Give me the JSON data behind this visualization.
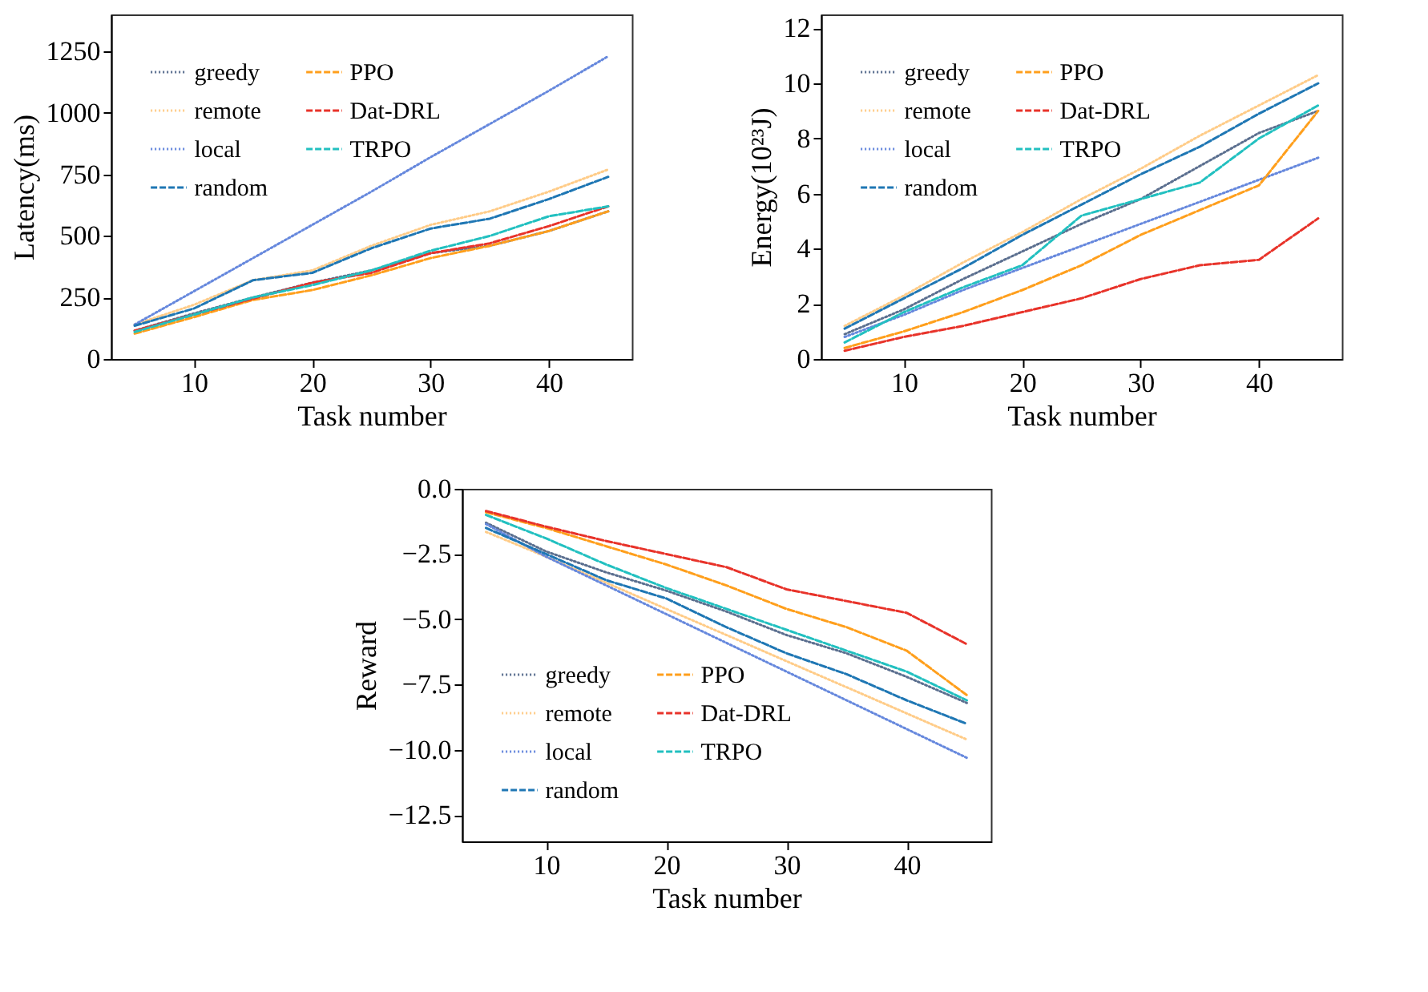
{
  "chart_data": [
    {
      "type": "line",
      "xlabel": "Task number",
      "ylabel": "Latency(ms)",
      "x": [
        5,
        10,
        15,
        20,
        25,
        30,
        35,
        40,
        45
      ],
      "xlim": [
        3,
        47
      ],
      "xticks": [
        10,
        20,
        30,
        40
      ],
      "ylim": [
        0,
        1400
      ],
      "yticks": [
        0,
        250,
        500,
        750,
        1000,
        1250
      ],
      "grid": false,
      "legend": "top left",
      "series": [
        {
          "name": "greedy",
          "color": "#5b6f8f",
          "line_style": "dotted",
          "values": [
            115,
            185,
            250,
            310,
            360,
            430,
            460,
            520,
            600
          ]
        },
        {
          "name": "remote",
          "color": "#ffcc88",
          "line_style": "dotted",
          "values": [
            140,
            220,
            320,
            360,
            460,
            545,
            600,
            680,
            770
          ]
        },
        {
          "name": "local",
          "color": "#6688dd",
          "line_style": "dotted",
          "values": [
            140,
            275,
            410,
            545,
            680,
            820,
            955,
            1090,
            1230
          ]
        },
        {
          "name": "random",
          "color": "#1f77b4",
          "line_style": "dashed",
          "values": [
            135,
            205,
            320,
            350,
            450,
            530,
            570,
            650,
            740
          ]
        },
        {
          "name": "PPO",
          "color": "#ff9f1c",
          "line_style": "dashed",
          "values": [
            103,
            170,
            240,
            280,
            340,
            410,
            460,
            520,
            600
          ]
        },
        {
          "name": "Dat-DRL",
          "color": "#e8332a",
          "line_style": "dashed",
          "values": [
            115,
            180,
            245,
            310,
            350,
            430,
            470,
            540,
            620
          ]
        },
        {
          "name": "TRPO",
          "color": "#22c0c0",
          "line_style": "dashed",
          "values": [
            110,
            180,
            250,
            300,
            360,
            440,
            500,
            580,
            620
          ]
        }
      ]
    },
    {
      "type": "line",
      "xlabel": "Task number",
      "ylabel": "Energy(10²³J)",
      "x": [
        5,
        10,
        15,
        20,
        25,
        30,
        35,
        40,
        45
      ],
      "xlim": [
        3,
        47
      ],
      "xticks": [
        10,
        20,
        30,
        40
      ],
      "ylim": [
        0,
        12.5
      ],
      "yticks": [
        0,
        2,
        4,
        6,
        8,
        10,
        12
      ],
      "grid": false,
      "legend": "top left",
      "series": [
        {
          "name": "greedy",
          "color": "#5b6f8f",
          "line_style": "dotted",
          "values": [
            0.9,
            1.8,
            2.9,
            3.9,
            4.9,
            5.8,
            7.0,
            8.2,
            9.0
          ]
        },
        {
          "name": "remote",
          "color": "#ffcc88",
          "line_style": "dotted",
          "values": [
            1.2,
            2.3,
            3.5,
            4.6,
            5.8,
            6.9,
            8.1,
            9.2,
            10.3
          ]
        },
        {
          "name": "local",
          "color": "#6688dd",
          "line_style": "dotted",
          "values": [
            0.8,
            1.6,
            2.5,
            3.3,
            4.1,
            4.9,
            5.7,
            6.5,
            7.3
          ]
        },
        {
          "name": "random",
          "color": "#1f77b4",
          "line_style": "dashed",
          "values": [
            1.1,
            2.2,
            3.3,
            4.5,
            5.6,
            6.7,
            7.7,
            8.9,
            10.0
          ]
        },
        {
          "name": "PPO",
          "color": "#ff9f1c",
          "line_style": "dashed",
          "values": [
            0.4,
            1.0,
            1.7,
            2.5,
            3.4,
            4.5,
            5.4,
            6.3,
            9.0
          ]
        },
        {
          "name": "Dat-DRL",
          "color": "#e8332a",
          "line_style": "dashed",
          "values": [
            0.3,
            0.8,
            1.2,
            1.7,
            2.2,
            2.9,
            3.4,
            3.6,
            5.1
          ]
        },
        {
          "name": "TRPO",
          "color": "#22c0c0",
          "line_style": "dashed",
          "values": [
            0.6,
            1.7,
            2.6,
            3.4,
            5.2,
            5.8,
            6.4,
            8.0,
            9.2
          ]
        }
      ]
    },
    {
      "type": "line",
      "xlabel": "Task number",
      "ylabel": "Reward",
      "x": [
        5,
        10,
        15,
        20,
        25,
        30,
        35,
        40,
        45
      ],
      "xlim": [
        3,
        47
      ],
      "xticks": [
        10,
        20,
        30,
        40
      ],
      "ylim": [
        -13.5,
        0
      ],
      "yticks": [
        {
          "value": 0,
          "label": "0.0"
        },
        {
          "value": -2.5,
          "label": "−2.5"
        },
        {
          "value": -5,
          "label": "−5.0"
        },
        {
          "value": -7.5,
          "label": "−7.5"
        },
        {
          "value": -10,
          "label": "−10.0"
        },
        {
          "value": -12.5,
          "label": "−12.5"
        }
      ],
      "grid": false,
      "legend": "bottom left",
      "series": [
        {
          "name": "greedy",
          "color": "#5b6f8f",
          "line_style": "dotted",
          "values": [
            -1.3,
            -2.4,
            -3.2,
            -3.9,
            -4.7,
            -5.6,
            -6.3,
            -7.2,
            -8.2
          ]
        },
        {
          "name": "remote",
          "color": "#ffcc88",
          "line_style": "dotted",
          "values": [
            -1.65,
            -2.6,
            -3.6,
            -4.6,
            -5.6,
            -6.6,
            -7.6,
            -8.6,
            -9.6
          ]
        },
        {
          "name": "local",
          "color": "#6688dd",
          "line_style": "dotted",
          "values": [
            -1.35,
            -2.6,
            -3.7,
            -4.8,
            -5.9,
            -7.0,
            -8.1,
            -9.2,
            -10.3
          ]
        },
        {
          "name": "random",
          "color": "#1f77b4",
          "line_style": "dashed",
          "values": [
            -1.5,
            -2.5,
            -3.5,
            -4.2,
            -5.3,
            -6.3,
            -7.1,
            -8.1,
            -9.0
          ]
        },
        {
          "name": "PPO",
          "color": "#ff9f1c",
          "line_style": "dashed",
          "values": [
            -0.9,
            -1.5,
            -2.2,
            -2.9,
            -3.7,
            -4.6,
            -5.3,
            -6.2,
            -7.9
          ]
        },
        {
          "name": "Dat-DRL",
          "color": "#e8332a",
          "line_style": "dashed",
          "values": [
            -0.85,
            -1.45,
            -2.0,
            -2.5,
            -3.0,
            -3.85,
            -4.3,
            -4.75,
            -5.95
          ]
        },
        {
          "name": "TRPO",
          "color": "#22c0c0",
          "line_style": "dashed",
          "values": [
            -1.0,
            -1.9,
            -2.9,
            -3.8,
            -4.6,
            -5.4,
            -6.2,
            -7.0,
            -8.1
          ]
        }
      ]
    }
  ]
}
